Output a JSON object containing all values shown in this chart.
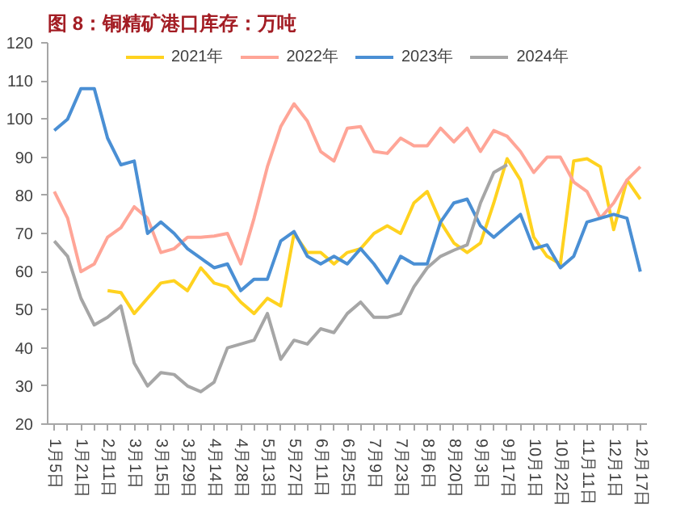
{
  "chart_data": {
    "type": "line",
    "title": "图 8：铜精矿港口库存：万吨",
    "categories": [
      "1月5日",
      null,
      "1月21日",
      null,
      "2月11日",
      null,
      "3月1日",
      null,
      "3月15日",
      null,
      "3月29日",
      null,
      "4月14日",
      null,
      "4月28日",
      null,
      "5月13日",
      null,
      "5月27日",
      null,
      "6月11日",
      null,
      "6月25日",
      null,
      "7月9日",
      null,
      "7月23日",
      null,
      "8月6日",
      null,
      "8月20日",
      null,
      "9月3日",
      null,
      "9月17日",
      null,
      "10月1日",
      null,
      "10月22日",
      null,
      "11月11日",
      null,
      "12月1日",
      null,
      "12月17日"
    ],
    "series": [
      {
        "name": "2021年",
        "color": "#ffd21f",
        "values": [
          null,
          null,
          null,
          null,
          55,
          54.5,
          49,
          53,
          57,
          57.6,
          55,
          61,
          57,
          56,
          52,
          49,
          53,
          51,
          70,
          65,
          65,
          62,
          65,
          66,
          70,
          72,
          70,
          78,
          81,
          73,
          67.5,
          65,
          67.5,
          78,
          89.6,
          84,
          69,
          64,
          62,
          89,
          89.6,
          87.5,
          71,
          84,
          79
        ]
      },
      {
        "name": "2022年",
        "color": "#ffa597",
        "values": [
          81,
          74,
          60,
          62,
          69,
          71.5,
          77,
          74,
          65,
          66,
          69,
          69,
          69.3,
          70,
          62,
          74,
          87.5,
          98,
          104,
          99.5,
          91.5,
          89,
          97.6,
          98,
          91.5,
          91,
          95,
          93,
          93,
          97.6,
          94,
          97.6,
          91.5,
          97,
          95.5,
          91.5,
          86,
          90,
          90,
          83.5,
          81,
          74,
          78,
          84,
          87.5
        ]
      },
      {
        "name": "2023年",
        "color": "#4a8fd4",
        "values": [
          97,
          100,
          108,
          108,
          95,
          88,
          89,
          70,
          73,
          70,
          66,
          63.5,
          61,
          62,
          55,
          58,
          58,
          68,
          70.5,
          64,
          62,
          64,
          62,
          66,
          62,
          57,
          64,
          62,
          62,
          73,
          78,
          79,
          72,
          69,
          72,
          75,
          66,
          67,
          61,
          64,
          73,
          74,
          75,
          74,
          60
        ]
      },
      {
        "name": "2024年",
        "color": "#a6a6a6",
        "values": [
          68,
          64,
          53,
          46,
          48,
          51,
          36,
          30,
          33.5,
          33,
          30,
          28.5,
          31,
          40,
          41,
          42,
          49,
          37,
          42,
          41,
          45,
          44,
          49,
          52,
          48,
          48,
          49,
          56,
          61,
          64,
          65.6,
          67,
          78,
          86,
          88,
          null,
          null,
          null,
          null,
          null,
          null,
          null,
          null,
          null,
          null
        ]
      }
    ],
    "ylim": [
      20,
      120
    ],
    "yticks": [
      20,
      30,
      40,
      50,
      60,
      70,
      80,
      90,
      100,
      110,
      120
    ],
    "grid": false,
    "legend": "top",
    "marker": "none",
    "line_style": "solid"
  }
}
